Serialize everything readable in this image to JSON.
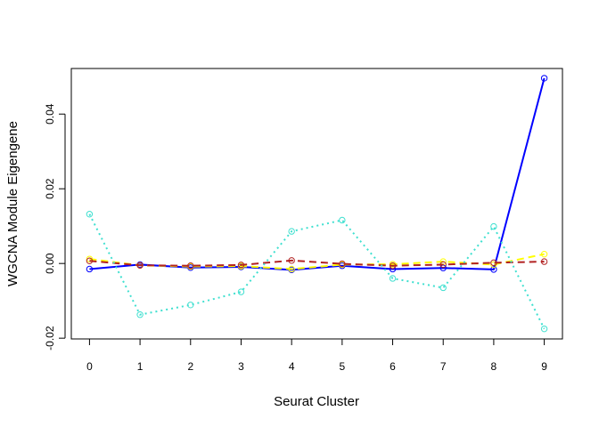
{
  "chart_data": {
    "type": "line",
    "title": "",
    "xlabel": "Seurat Cluster",
    "ylabel": "WGCNA Module Eigengene",
    "categories": [
      "0",
      "1",
      "2",
      "3",
      "4",
      "5",
      "6",
      "7",
      "8",
      "9"
    ],
    "x": [
      0,
      1,
      2,
      3,
      4,
      5,
      6,
      7,
      8,
      9
    ],
    "xlim": [
      -0.36,
      9.36
    ],
    "ylim": [
      -0.0202,
      0.0522
    ],
    "y_ticks": [
      -0.02,
      0.0,
      0.02,
      0.04
    ],
    "y_tick_labels": [
      "-0.02",
      "0.00",
      "0.02",
      "0.04"
    ],
    "grid": false,
    "legend": "none",
    "series": [
      {
        "color": "#0000FF",
        "line_style": "solid",
        "line_width": 2,
        "values": [
          -0.0015,
          -0.0003,
          -0.0011,
          -0.0009,
          -0.0017,
          -0.0006,
          -0.0015,
          -0.0012,
          -0.0016,
          0.0496
        ]
      },
      {
        "color": "#FFFF00",
        "line_style": "dashed",
        "line_width": 2,
        "values": [
          0.0012,
          -0.0005,
          -0.0008,
          -0.0007,
          -0.0015,
          -0.0003,
          -0.0002,
          0.0005,
          -0.0003,
          0.0025
        ]
      },
      {
        "color": "#B22222",
        "line_style": "dashed",
        "line_width": 2,
        "values": [
          0.0007,
          -0.0005,
          -0.0006,
          -0.0004,
          0.0008,
          -0.0001,
          -0.0006,
          -0.0003,
          0.0002,
          0.0005
        ]
      },
      {
        "color": "#40E0D0",
        "line_style": "dotted",
        "line_width": 2,
        "values": [
          0.0132,
          -0.0137,
          -0.0111,
          -0.0076,
          0.0086,
          0.0116,
          -0.004,
          -0.0065,
          0.0099,
          -0.0175
        ]
      }
    ]
  }
}
